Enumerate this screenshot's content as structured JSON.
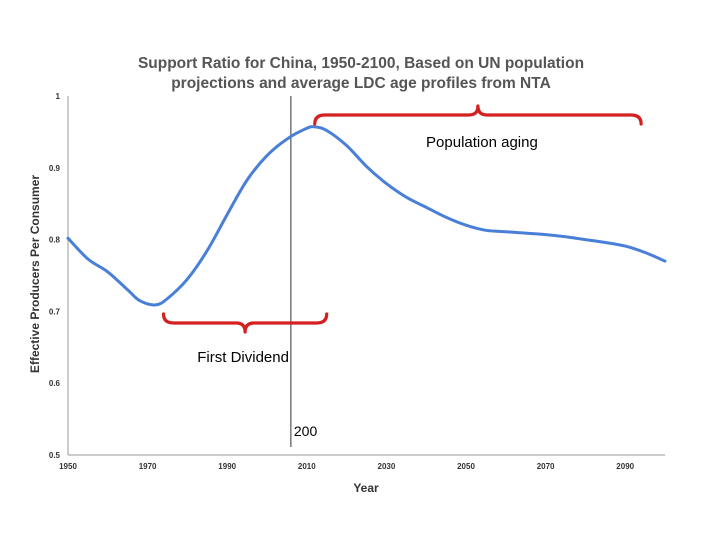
{
  "chart_data": {
    "type": "line",
    "title": [
      "Support Ratio for China, 1950-2100, Based on UN population",
      "projections and average LDC age profiles from NTA"
    ],
    "xlabel": "Year",
    "ylabel": "Effective Producers Per Consumer",
    "xlim": [
      1950,
      2100
    ],
    "ylim": [
      0.5,
      1
    ],
    "x_ticks": [
      "1950",
      "1970",
      "1990",
      "2010",
      "2030",
      "2050",
      "2070",
      "2090"
    ],
    "y_ticks": [
      "0.5",
      "0.6",
      "0.7",
      "0.8",
      "0.9",
      "1"
    ],
    "series": [
      {
        "name": "Support ratio",
        "color": "#4a7fd8",
        "x": [
          1950,
          1955,
          1960,
          1965,
          1968,
          1972,
          1975,
          1980,
          1985,
          1990,
          1995,
          2000,
          2005,
          2010,
          2012,
          2015,
          2020,
          2025,
          2030,
          2035,
          2040,
          2045,
          2050,
          2055,
          2060,
          2065,
          2070,
          2075,
          2080,
          2085,
          2090,
          2095,
          2100
        ],
        "values": [
          0.802,
          0.773,
          0.755,
          0.73,
          0.715,
          0.709,
          0.718,
          0.745,
          0.785,
          0.835,
          0.883,
          0.917,
          0.94,
          0.955,
          0.957,
          0.952,
          0.931,
          0.902,
          0.878,
          0.859,
          0.845,
          0.831,
          0.82,
          0.813,
          0.811,
          0.809,
          0.807,
          0.804,
          0.8,
          0.796,
          0.791,
          0.782,
          0.77
        ]
      }
    ],
    "vline": {
      "x": 2006,
      "label": "200"
    },
    "annotations": [
      {
        "text": "Population aging",
        "range": [
          2012,
          2094
        ],
        "side": "above"
      },
      {
        "text": "First Dividend",
        "range": [
          1974,
          2015
        ],
        "side": "below"
      }
    ],
    "grid": false
  }
}
